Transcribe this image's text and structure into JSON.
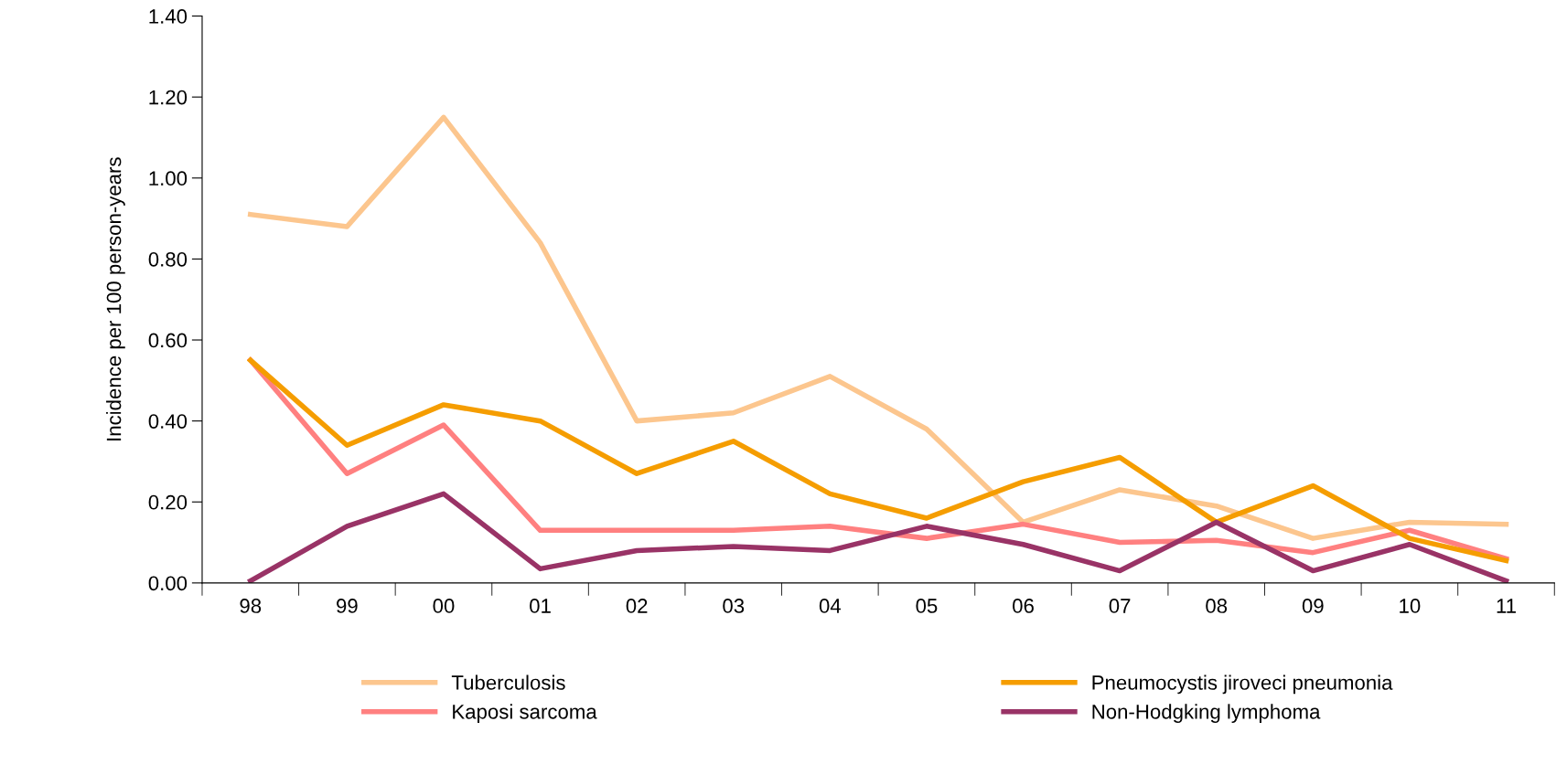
{
  "chart_data": {
    "type": "line",
    "ylabel": "Incidence per 100 person-years",
    "categories": [
      "98",
      "99",
      "00",
      "01",
      "02",
      "03",
      "04",
      "05",
      "06",
      "07",
      "08",
      "09",
      "10",
      "11"
    ],
    "series": [
      {
        "name": "Tuberculosis",
        "color": "#fcc68e",
        "values": [
          0.91,
          0.88,
          1.15,
          0.84,
          0.4,
          0.42,
          0.51,
          0.38,
          0.15,
          0.23,
          0.19,
          0.11,
          0.15,
          0.145
        ]
      },
      {
        "name": "Kaposi sarcoma",
        "color": "#ff8080",
        "values": [
          0.55,
          0.27,
          0.39,
          0.13,
          0.13,
          0.13,
          0.14,
          0.11,
          0.145,
          0.1,
          0.105,
          0.075,
          0.13,
          0.06
        ]
      },
      {
        "name": "Pneumocystis jiroveci pneumonia",
        "color": "#f59d00",
        "values": [
          0.55,
          0.34,
          0.44,
          0.4,
          0.27,
          0.35,
          0.22,
          0.16,
          0.25,
          0.31,
          0.15,
          0.24,
          0.11,
          0.055
        ]
      },
      {
        "name": "Non-Hodgking lymphoma",
        "color": "#993366",
        "values": [
          0.005,
          0.14,
          0.22,
          0.035,
          0.08,
          0.09,
          0.08,
          0.14,
          0.095,
          0.03,
          0.15,
          0.03,
          0.095,
          0.005
        ]
      }
    ],
    "ylim": [
      0,
      1.4
    ],
    "yticks": [
      {
        "value": 0,
        "label": "0.00"
      },
      {
        "value": 0.2,
        "label": "0.20"
      },
      {
        "value": 0.4,
        "label": "0.40"
      },
      {
        "value": 0.6,
        "label": "0.60"
      },
      {
        "value": 0.8,
        "label": "0.80"
      },
      {
        "value": 1.0,
        "label": "1.00"
      },
      {
        "value": 1.2,
        "label": "1.20"
      },
      {
        "value": 1.4,
        "label": "1.40"
      }
    ],
    "legend": "bottom",
    "line_style": "solid"
  }
}
